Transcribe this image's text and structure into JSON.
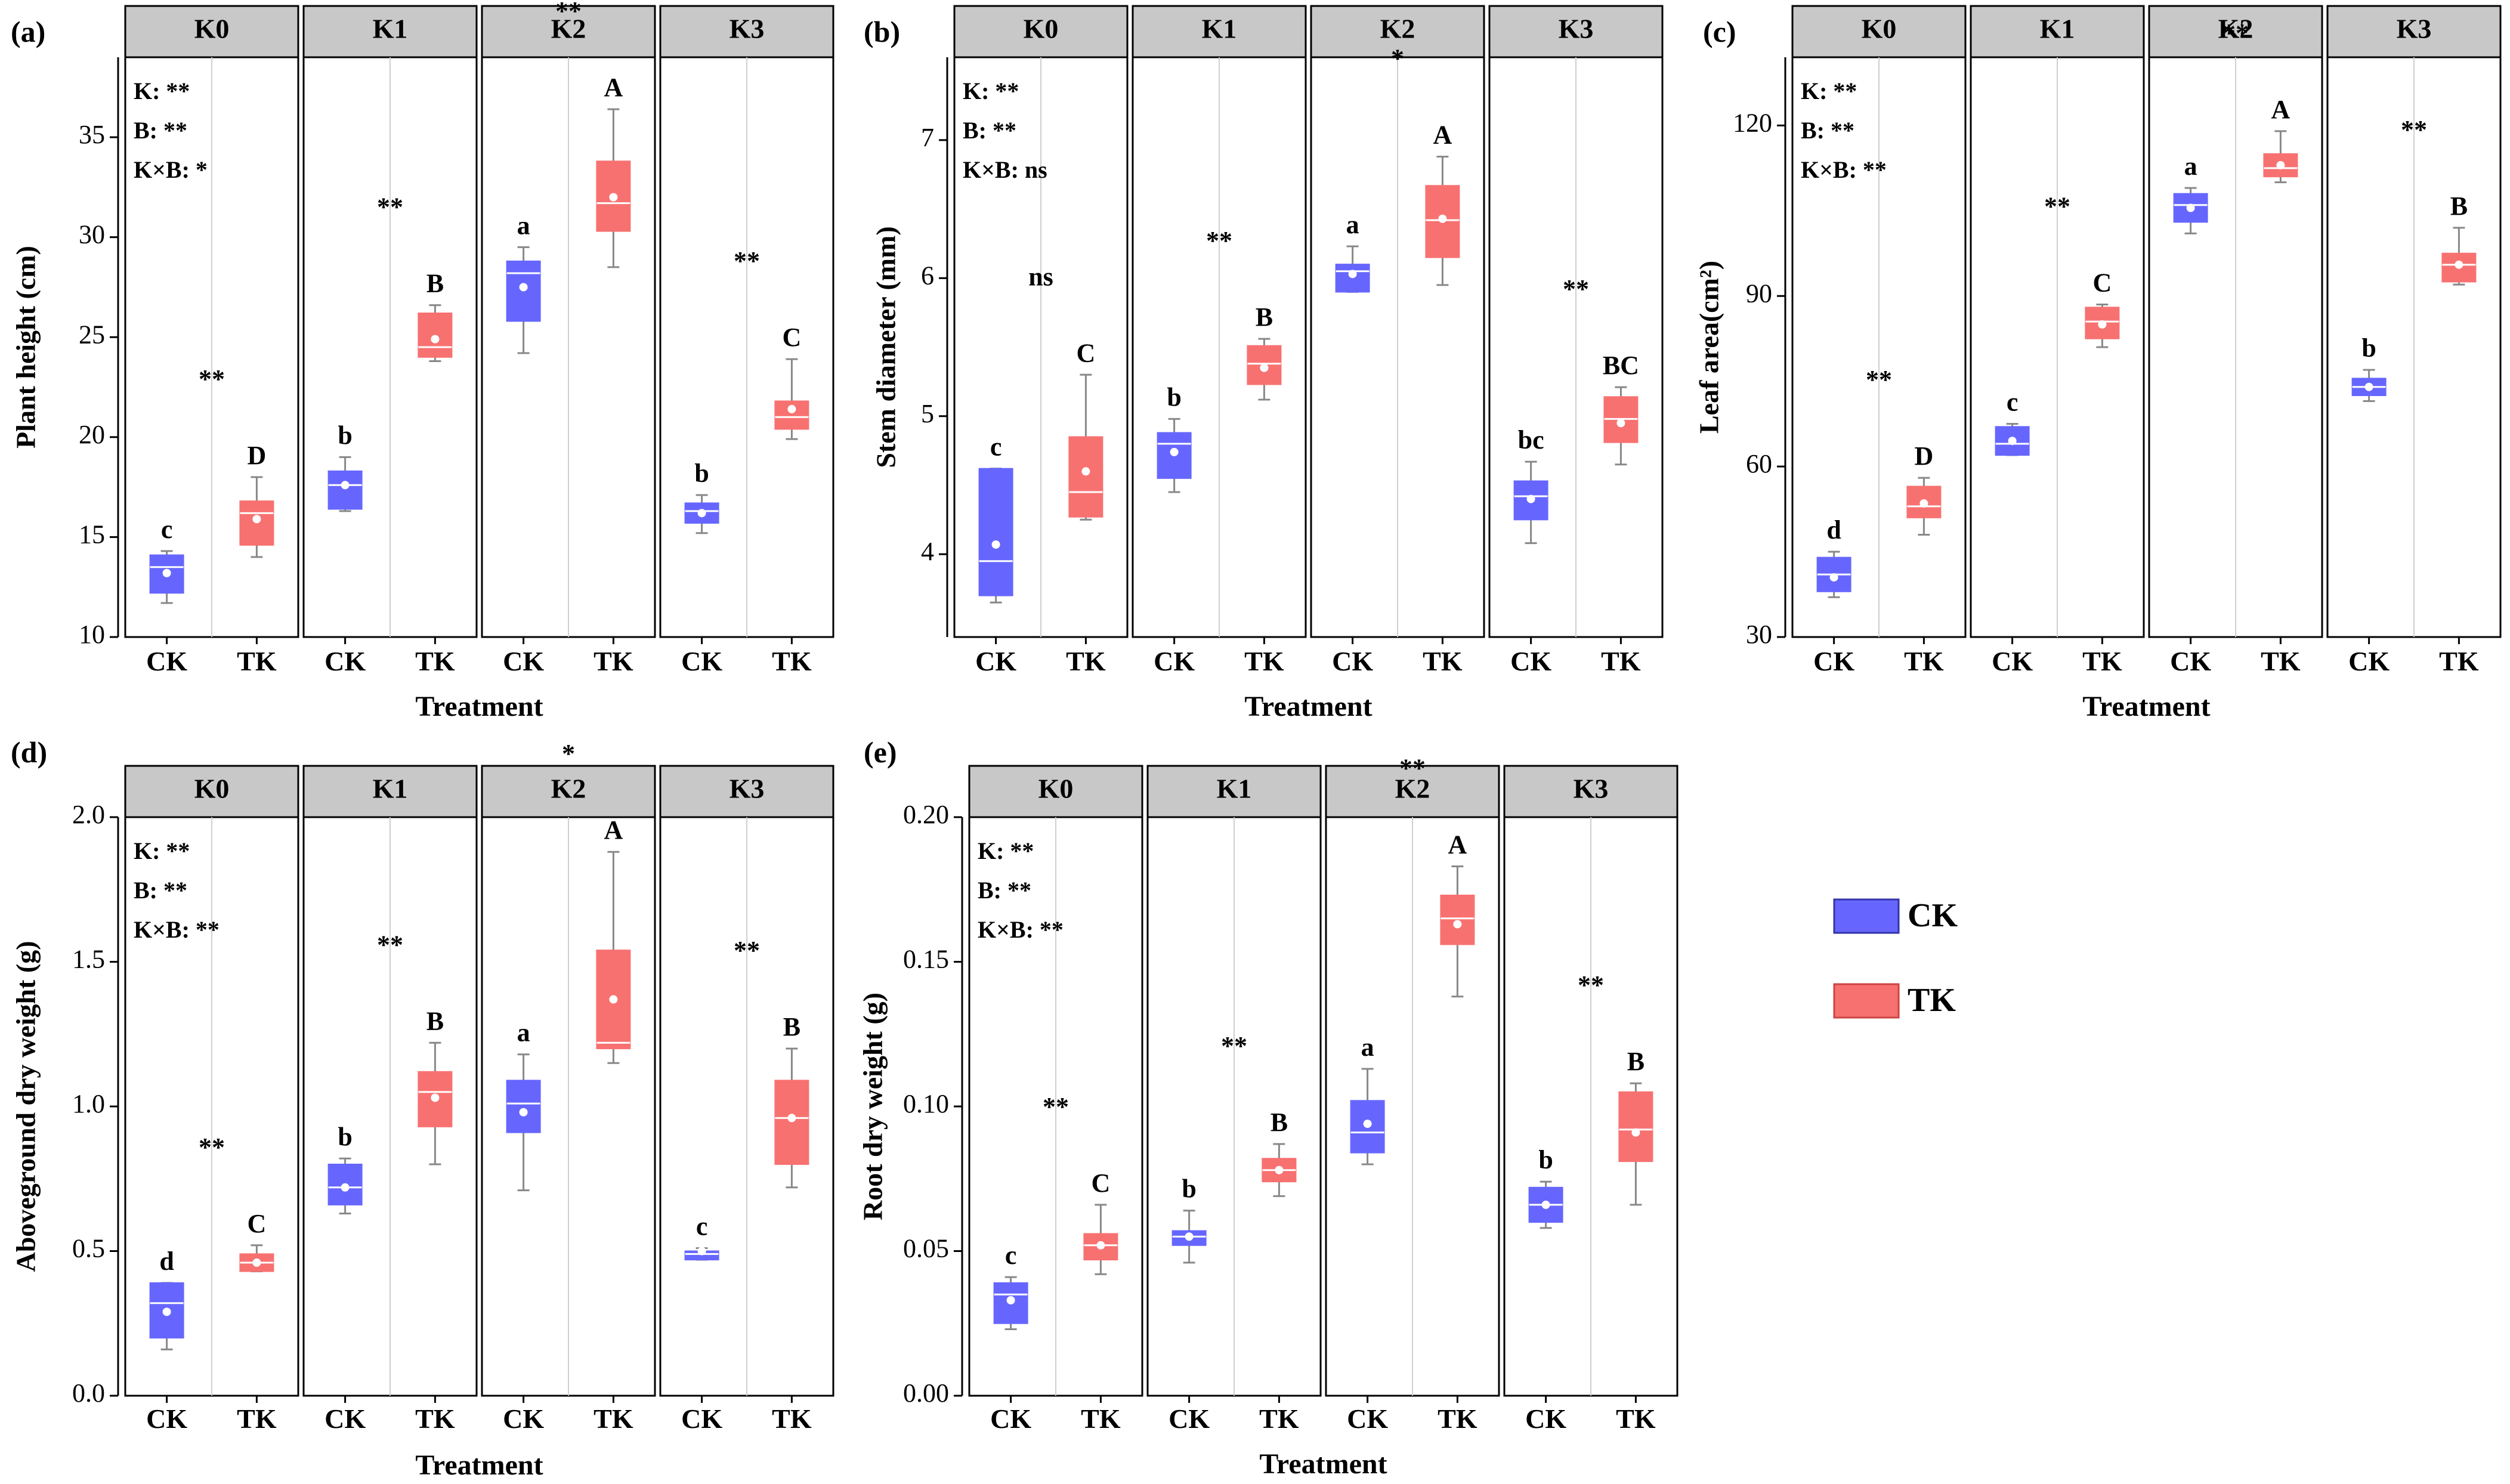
{
  "colors": {
    "ck": "#6666ff",
    "tk": "#f87171",
    "strip": "#c8c8c8",
    "ck_border": "#3333aa",
    "tk_border": "#cc4444"
  },
  "legend": {
    "items": [
      {
        "key": "ck",
        "label": "CK"
      },
      {
        "key": "tk",
        "label": "TK"
      }
    ]
  },
  "chart_data": [
    {
      "panel": "(a)",
      "type": "box",
      "ylabel": "Plant height (cm)",
      "xlabel": "Treatment",
      "ylim": [
        10,
        39
      ],
      "yticks": [
        10,
        15,
        20,
        25,
        30,
        35
      ],
      "facets": [
        "K0",
        "K1",
        "K2",
        "K3"
      ],
      "categories": [
        "CK",
        "TK"
      ],
      "stats": [
        "K: **",
        "B: **",
        "K×B: *"
      ],
      "groups": [
        {
          "facet": "K0",
          "sig": "**",
          "boxes": [
            {
              "treatment": "CK",
              "min": 11.7,
              "q1": 12.2,
              "median": 13.5,
              "q3": 14.1,
              "max": 14.3,
              "mean": 13.2,
              "letter": "c"
            },
            {
              "treatment": "TK",
              "min": 14.0,
              "q1": 14.6,
              "median": 16.2,
              "q3": 16.8,
              "max": 18.0,
              "mean": 15.9,
              "letter": "D"
            }
          ]
        },
        {
          "facet": "K1",
          "sig": "**",
          "boxes": [
            {
              "treatment": "CK",
              "min": 16.3,
              "q1": 16.4,
              "median": 17.6,
              "q3": 18.3,
              "max": 19.0,
              "mean": 17.6,
              "letter": "b"
            },
            {
              "treatment": "TK",
              "min": 23.8,
              "q1": 24.0,
              "median": 24.5,
              "q3": 26.2,
              "max": 26.6,
              "mean": 24.9,
              "letter": "B"
            }
          ]
        },
        {
          "facet": "K2",
          "sig": "**",
          "boxes": [
            {
              "treatment": "CK",
              "min": 24.2,
              "q1": 25.8,
              "median": 28.2,
              "q3": 28.8,
              "max": 29.5,
              "mean": 27.5,
              "letter": "a"
            },
            {
              "treatment": "TK",
              "min": 28.5,
              "q1": 30.3,
              "median": 31.7,
              "q3": 33.8,
              "max": 36.4,
              "mean": 32.0,
              "letter": "A"
            }
          ]
        },
        {
          "facet": "K3",
          "sig": "**",
          "boxes": [
            {
              "treatment": "CK",
              "min": 15.2,
              "q1": 15.7,
              "median": 16.3,
              "q3": 16.7,
              "max": 17.1,
              "mean": 16.2,
              "letter": "b"
            },
            {
              "treatment": "TK",
              "min": 19.9,
              "q1": 20.4,
              "median": 21.0,
              "q3": 21.8,
              "max": 23.9,
              "mean": 21.4,
              "letter": "C"
            }
          ]
        }
      ]
    },
    {
      "panel": "(b)",
      "type": "box",
      "ylabel": "Stem diameter (mm)",
      "xlabel": "Treatment",
      "ylim": [
        3.4,
        7.6
      ],
      "yticks": [
        4,
        5,
        6,
        7
      ],
      "facets": [
        "K0",
        "K1",
        "K2",
        "K3"
      ],
      "categories": [
        "CK",
        "TK"
      ],
      "stats": [
        "K: **",
        "B: **",
        "K×B: ns"
      ],
      "groups": [
        {
          "facet": "K0",
          "sig": "ns",
          "boxes": [
            {
              "treatment": "CK",
              "min": 3.65,
              "q1": 3.7,
              "median": 3.95,
              "q3": 4.62,
              "max": 4.62,
              "mean": 4.07,
              "letter": "c"
            },
            {
              "treatment": "TK",
              "min": 4.25,
              "q1": 4.27,
              "median": 4.45,
              "q3": 4.85,
              "max": 5.3,
              "mean": 4.6,
              "letter": "C"
            }
          ]
        },
        {
          "facet": "K1",
          "sig": "**",
          "boxes": [
            {
              "treatment": "CK",
              "min": 4.45,
              "q1": 4.55,
              "median": 4.8,
              "q3": 4.88,
              "max": 4.98,
              "mean": 4.74,
              "letter": "b"
            },
            {
              "treatment": "TK",
              "min": 5.12,
              "q1": 5.23,
              "median": 5.38,
              "q3": 5.51,
              "max": 5.56,
              "mean": 5.35,
              "letter": "B"
            }
          ]
        },
        {
          "facet": "K2",
          "sig": "*",
          "boxes": [
            {
              "treatment": "CK",
              "min": 5.9,
              "q1": 5.9,
              "median": 6.05,
              "q3": 6.1,
              "max": 6.23,
              "mean": 6.03,
              "letter": "a"
            },
            {
              "treatment": "TK",
              "min": 5.95,
              "q1": 6.15,
              "median": 6.42,
              "q3": 6.67,
              "max": 6.88,
              "mean": 6.43,
              "letter": "A"
            }
          ]
        },
        {
          "facet": "K3",
          "sig": "**",
          "boxes": [
            {
              "treatment": "CK",
              "min": 4.08,
              "q1": 4.25,
              "median": 4.42,
              "q3": 4.53,
              "max": 4.67,
              "mean": 4.4,
              "letter": "bc"
            },
            {
              "treatment": "TK",
              "min": 4.65,
              "q1": 4.81,
              "median": 4.98,
              "q3": 5.14,
              "max": 5.21,
              "mean": 4.95,
              "letter": "BC"
            }
          ]
        }
      ]
    },
    {
      "panel": "(c)",
      "type": "box",
      "ylabel": "Leaf area(cm²)",
      "xlabel": "Treatment",
      "ylim": [
        30,
        132
      ],
      "yticks": [
        30,
        60,
        90,
        120
      ],
      "facets": [
        "K0",
        "K1",
        "K2",
        "K3"
      ],
      "categories": [
        "CK",
        "TK"
      ],
      "stats": [
        "K: **",
        "B: **",
        "K×B: **"
      ],
      "groups": [
        {
          "facet": "K0",
          "sig": "**",
          "boxes": [
            {
              "treatment": "CK",
              "min": 37.0,
              "q1": 38.0,
              "median": 41.0,
              "q3": 44.0,
              "max": 45.0,
              "mean": 40.5,
              "letter": "d"
            },
            {
              "treatment": "TK",
              "min": 48.0,
              "q1": 51.0,
              "median": 53.0,
              "q3": 56.5,
              "max": 58.0,
              "mean": 53.5,
              "letter": "D"
            }
          ]
        },
        {
          "facet": "K1",
          "sig": "**",
          "boxes": [
            {
              "treatment": "CK",
              "min": 62.0,
              "q1": 62.0,
              "median": 64.0,
              "q3": 67.0,
              "max": 67.5,
              "mean": 64.5,
              "letter": "c"
            },
            {
              "treatment": "TK",
              "min": 81.0,
              "q1": 82.5,
              "median": 85.5,
              "q3": 88.0,
              "max": 88.5,
              "mean": 85.0,
              "letter": "C"
            }
          ]
        },
        {
          "facet": "K2",
          "sig": "**",
          "boxes": [
            {
              "treatment": "CK",
              "min": 101.0,
              "q1": 103.0,
              "median": 106.0,
              "q3": 108.0,
              "max": 109.0,
              "mean": 105.5,
              "letter": "a"
            },
            {
              "treatment": "TK",
              "min": 110.0,
              "q1": 111.0,
              "median": 112.5,
              "q3": 115.0,
              "max": 119.0,
              "mean": 113.0,
              "letter": "A"
            }
          ]
        },
        {
          "facet": "K3",
          "sig": "**",
          "boxes": [
            {
              "treatment": "CK",
              "min": 71.5,
              "q1": 72.5,
              "median": 74.0,
              "q3": 75.5,
              "max": 77.0,
              "mean": 74.0,
              "letter": "b"
            },
            {
              "treatment": "TK",
              "min": 92.0,
              "q1": 92.5,
              "median": 95.5,
              "q3": 97.5,
              "max": 102.0,
              "mean": 95.5,
              "letter": "B"
            }
          ]
        }
      ]
    },
    {
      "panel": "(d)",
      "type": "box",
      "ylabel": "Aboveground dry weight (g)",
      "xlabel": "Treatment",
      "ylim": [
        0,
        2.0
      ],
      "yticks": [
        0.0,
        0.5,
        1.0,
        1.5,
        2.0
      ],
      "ydecimals": 1,
      "facets": [
        "K0",
        "K1",
        "K2",
        "K3"
      ],
      "categories": [
        "CK",
        "TK"
      ],
      "stats": [
        "K: **",
        "B: **",
        "K×B: **"
      ],
      "groups": [
        {
          "facet": "K0",
          "sig": "**",
          "boxes": [
            {
              "treatment": "CK",
              "min": 0.16,
              "q1": 0.2,
              "median": 0.32,
              "q3": 0.39,
              "max": 0.39,
              "mean": 0.29,
              "letter": "d"
            },
            {
              "treatment": "TK",
              "min": 0.43,
              "q1": 0.43,
              "median": 0.46,
              "q3": 0.49,
              "max": 0.52,
              "mean": 0.46,
              "letter": "C"
            }
          ]
        },
        {
          "facet": "K1",
          "sig": "**",
          "boxes": [
            {
              "treatment": "CK",
              "min": 0.63,
              "q1": 0.66,
              "median": 0.72,
              "q3": 0.8,
              "max": 0.82,
              "mean": 0.72,
              "letter": "b"
            },
            {
              "treatment": "TK",
              "min": 0.8,
              "q1": 0.93,
              "median": 1.05,
              "q3": 1.12,
              "max": 1.22,
              "mean": 1.03,
              "letter": "B"
            }
          ]
        },
        {
          "facet": "K2",
          "sig": "*",
          "boxes": [
            {
              "treatment": "CK",
              "min": 0.71,
              "q1": 0.91,
              "median": 1.01,
              "q3": 1.09,
              "max": 1.18,
              "mean": 0.98,
              "letter": "a"
            },
            {
              "treatment": "TK",
              "min": 1.15,
              "q1": 1.2,
              "median": 1.22,
              "q3": 1.54,
              "max": 1.88,
              "mean": 1.37,
              "letter": "A"
            }
          ]
        },
        {
          "facet": "K3",
          "sig": "**",
          "boxes": [
            {
              "treatment": "CK",
              "min": 0.47,
              "q1": 0.47,
              "median": 0.49,
              "q3": 0.5,
              "max": 0.51,
              "mean": 0.5,
              "letter": "c"
            },
            {
              "treatment": "TK",
              "min": 0.72,
              "q1": 0.8,
              "median": 0.96,
              "q3": 1.09,
              "max": 1.2,
              "mean": 0.96,
              "letter": "B"
            }
          ]
        }
      ]
    },
    {
      "panel": "(e)",
      "type": "box",
      "ylabel": "Root dry weight (g)",
      "xlabel": "Treatment",
      "ylim": [
        0,
        0.2
      ],
      "yticks": [
        0.0,
        0.05,
        0.1,
        0.15,
        0.2
      ],
      "ydecimals": 2,
      "facets": [
        "K0",
        "K1",
        "K2",
        "K3"
      ],
      "categories": [
        "CK",
        "TK"
      ],
      "stats": [
        "K: **",
        "B: **",
        "K×B: **"
      ],
      "groups": [
        {
          "facet": "K0",
          "sig": "**",
          "boxes": [
            {
              "treatment": "CK",
              "min": 0.023,
              "q1": 0.025,
              "median": 0.035,
              "q3": 0.039,
              "max": 0.041,
              "mean": 0.033,
              "letter": "c"
            },
            {
              "treatment": "TK",
              "min": 0.042,
              "q1": 0.047,
              "median": 0.052,
              "q3": 0.056,
              "max": 0.066,
              "mean": 0.052,
              "letter": "C"
            }
          ]
        },
        {
          "facet": "K1",
          "sig": "**",
          "boxes": [
            {
              "treatment": "CK",
              "min": 0.046,
              "q1": 0.052,
              "median": 0.055,
              "q3": 0.057,
              "max": 0.064,
              "mean": 0.055,
              "letter": "b"
            },
            {
              "treatment": "TK",
              "min": 0.069,
              "q1": 0.074,
              "median": 0.078,
              "q3": 0.082,
              "max": 0.087,
              "mean": 0.078,
              "letter": "B"
            }
          ]
        },
        {
          "facet": "K2",
          "sig": "**",
          "boxes": [
            {
              "treatment": "CK",
              "min": 0.08,
              "q1": 0.084,
              "median": 0.091,
              "q3": 0.102,
              "max": 0.113,
              "mean": 0.094,
              "letter": "a"
            },
            {
              "treatment": "TK",
              "min": 0.138,
              "q1": 0.156,
              "median": 0.165,
              "q3": 0.173,
              "max": 0.183,
              "mean": 0.163,
              "letter": "A"
            }
          ]
        },
        {
          "facet": "K3",
          "sig": "**",
          "boxes": [
            {
              "treatment": "CK",
              "min": 0.058,
              "q1": 0.06,
              "median": 0.066,
              "q3": 0.072,
              "max": 0.074,
              "mean": 0.066,
              "letter": "b"
            },
            {
              "treatment": "TK",
              "min": 0.066,
              "q1": 0.081,
              "median": 0.092,
              "q3": 0.105,
              "max": 0.108,
              "mean": 0.091,
              "letter": "B"
            }
          ]
        }
      ]
    }
  ]
}
